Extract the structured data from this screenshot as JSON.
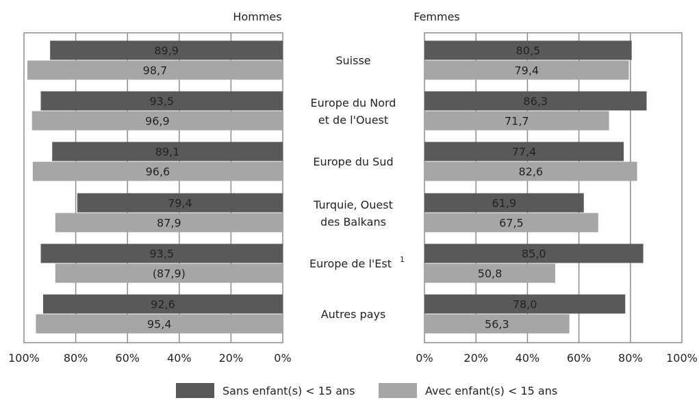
{
  "chart_data": {
    "type": "bar",
    "orientation": "horizontal",
    "categories": [
      [
        "Suisse"
      ],
      [
        "Europe du Nord",
        "et de l'Ouest"
      ],
      [
        "Europe du Sud"
      ],
      [
        "Turquie, Ouest",
        "des Balkans"
      ],
      [
        "Europe de l'Est",
        "1"
      ],
      [
        "Autres pays"
      ]
    ],
    "panels": [
      {
        "title": "Hommes",
        "direction": "reversed",
        "xlim": [
          0,
          100
        ],
        "ticks": [
          "0%",
          "20%",
          "40%",
          "60%",
          "80%",
          "100%"
        ],
        "series": [
          {
            "name": "Sans enfant(s) < 15 ans",
            "values": [
              89.9,
              93.5,
              89.1,
              79.4,
              93.5,
              92.6
            ],
            "labels": [
              "89,9",
              "93,5",
              "89,1",
              "79,4",
              "93,5",
              "92,6"
            ]
          },
          {
            "name": "Avec enfant(s) < 15 ans",
            "values": [
              98.7,
              96.9,
              96.6,
              87.9,
              87.9,
              95.4
            ],
            "labels": [
              "98,7",
              "96,9",
              "96,6",
              "87,9",
              "(87,9)",
              "95,4"
            ]
          }
        ]
      },
      {
        "title": "Femmes",
        "direction": "normal",
        "xlim": [
          0,
          100
        ],
        "ticks": [
          "0%",
          "20%",
          "40%",
          "60%",
          "80%",
          "100%"
        ],
        "series": [
          {
            "name": "Sans enfant(s) < 15 ans",
            "values": [
              80.5,
              86.3,
              77.4,
              61.9,
              85.0,
              78.0
            ],
            "labels": [
              "80,5",
              "86,3",
              "77,4",
              "61,9",
              "85,0",
              "78,0"
            ]
          },
          {
            "name": "Avec enfant(s) < 15 ans",
            "values": [
              79.4,
              71.7,
              82.6,
              67.5,
              50.8,
              56.3
            ],
            "labels": [
              "79,4",
              "71,7",
              "82,6",
              "67,5",
              "50,8",
              "56,3"
            ]
          }
        ]
      }
    ],
    "legend": {
      "position": "bottom",
      "items": [
        {
          "label": "Sans enfant(s) < 15 ans",
          "color": "#595959"
        },
        {
          "label": "Avec enfant(s) < 15 ans",
          "color": "#a6a6a6"
        }
      ]
    },
    "grid": true,
    "colors": {
      "dark": "#595959",
      "light": "#a6a6a6",
      "grid": "#8c8c8c",
      "frame": "#8c8c8c"
    }
  }
}
